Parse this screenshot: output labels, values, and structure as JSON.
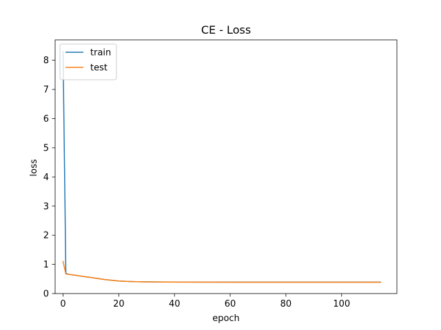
{
  "chart_data": {
    "type": "line",
    "title": "CE - Loss",
    "xlabel": "epoch",
    "ylabel": "loss",
    "xlim": [
      -2.85,
      119.85
    ],
    "ylim": [
      0,
      8.7
    ],
    "xticks": [
      0,
      20,
      40,
      60,
      80,
      100
    ],
    "yticks": [
      0,
      1,
      2,
      3,
      4,
      5,
      6,
      7,
      8
    ],
    "grid": false,
    "legend": "top-left",
    "series": [
      {
        "name": "train",
        "color": "#1f77b4",
        "x": [
          0,
          1,
          2,
          5,
          10,
          15,
          20,
          25,
          30,
          40,
          50,
          60,
          70,
          80,
          90,
          100,
          110,
          114
        ],
        "y": [
          8.3,
          0.69,
          0.66,
          0.62,
          0.55,
          0.48,
          0.43,
          0.41,
          0.4,
          0.395,
          0.393,
          0.392,
          0.392,
          0.392,
          0.392,
          0.392,
          0.392,
          0.392
        ]
      },
      {
        "name": "test",
        "color": "#ff7f0e",
        "x": [
          0,
          1,
          2,
          5,
          10,
          15,
          20,
          25,
          30,
          40,
          50,
          60,
          70,
          80,
          90,
          100,
          110,
          114
        ],
        "y": [
          1.1,
          0.67,
          0.66,
          0.62,
          0.55,
          0.48,
          0.43,
          0.41,
          0.4,
          0.393,
          0.391,
          0.39,
          0.39,
          0.39,
          0.39,
          0.39,
          0.39,
          0.39
        ]
      }
    ]
  }
}
